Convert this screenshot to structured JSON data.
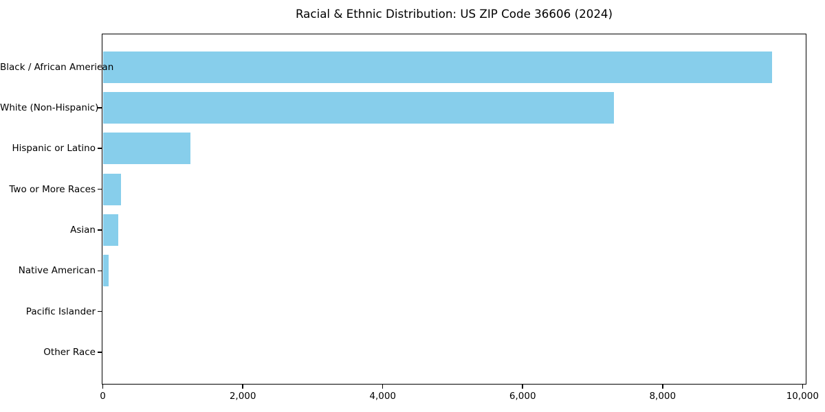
{
  "page": {
    "background": "#ffffff",
    "text_color": "#000000",
    "axis_color": "#000000"
  },
  "chart_data": {
    "type": "bar",
    "orientation": "horizontal",
    "title": "Racial & Ethnic Distribution: US ZIP Code 36606 (2024)",
    "categories": [
      "Black / African American",
      "White (Non-Hispanic)",
      "Hispanic or Latino",
      "Two or More Races",
      "Asian",
      "Native American",
      "Pacific Islander",
      "Other Race"
    ],
    "values": [
      9565,
      7300,
      1255,
      260,
      220,
      85,
      0,
      0
    ],
    "xlabel": "",
    "ylabel": "",
    "xlim": [
      0,
      10040
    ],
    "xticks": [
      0,
      2000,
      4000,
      6000,
      8000,
      10000
    ],
    "xtick_labels": [
      "0",
      "2,000",
      "4,000",
      "6,000",
      "8,000",
      "10,000"
    ],
    "bar_color": "#87CEEB",
    "grid": false,
    "legend_position": "none"
  }
}
